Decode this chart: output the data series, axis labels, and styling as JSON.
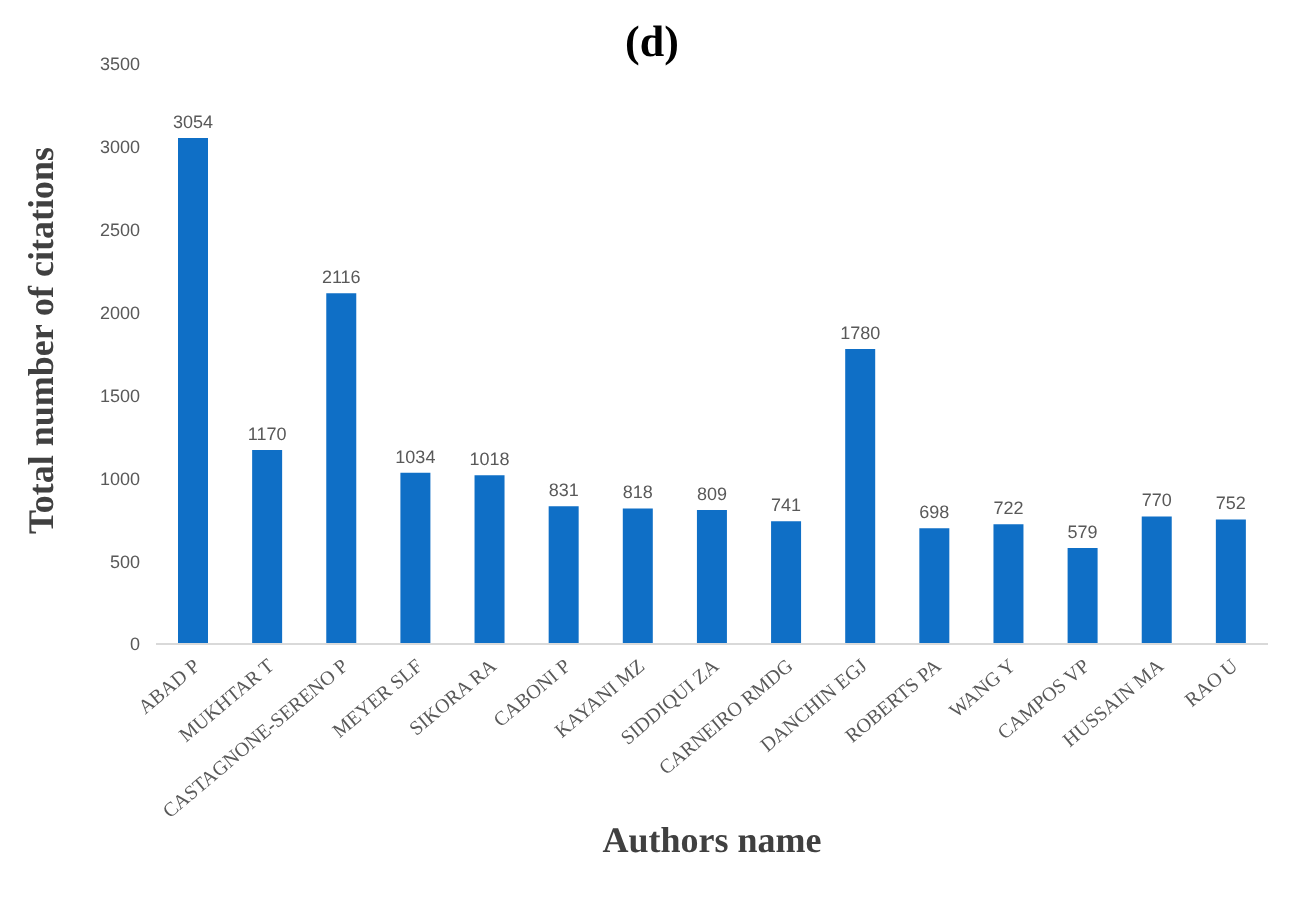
{
  "chart_data": {
    "type": "bar",
    "title": "(d)",
    "xlabel": "Authors name",
    "ylabel": "Total number of citations",
    "categories": [
      "ABAD P",
      "MUKHTAR T",
      "CASTAGNONE-SERENO P",
      "MEYER SLF",
      "SIKORA RA",
      "CABONI P",
      "KAYANI MZ",
      "SIDDIQUI ZA",
      "CARNEIRO RMDG",
      "DANCHIN EGJ",
      "ROBERTS PA",
      "WANG Y",
      "CAMPOS VP",
      "HUSSAIN MA",
      "RAO U"
    ],
    "values": [
      3054,
      1170,
      2116,
      1034,
      1018,
      831,
      818,
      809,
      741,
      1780,
      698,
      722,
      579,
      770,
      752
    ],
    "color": "#0f6fc6",
    "ylim": [
      0,
      3500
    ],
    "yticks": [
      0,
      500,
      1000,
      1500,
      2000,
      2500,
      3000,
      3500
    ],
    "grid": false,
    "data_labels": true
  }
}
